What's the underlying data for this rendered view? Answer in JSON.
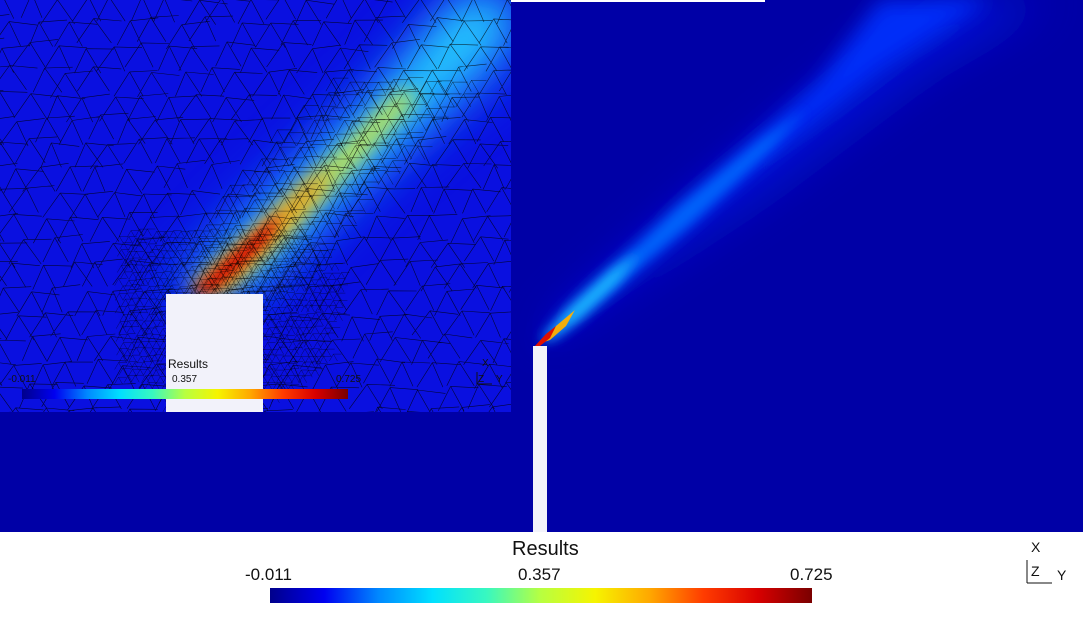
{
  "colormap": {
    "stops": [
      "#00008b",
      "#0000f0",
      "#0088ff",
      "#00e0ff",
      "#38f8c0",
      "#b8ff40",
      "#f6f400",
      "#ffa800",
      "#ff3c00",
      "#d80000",
      "#7a0000"
    ]
  },
  "inset_view": {
    "legend": {
      "title": "Results",
      "min": "-0.011",
      "mid": "0.357",
      "max": "0.725"
    },
    "axes": {
      "x": "X",
      "z": "Z",
      "y": "Y"
    }
  },
  "main_view": {
    "legend": {
      "title": "Results",
      "min": "-0.011",
      "mid": "0.357",
      "max": "0.725"
    },
    "axes": {
      "x": "X",
      "z": "Z",
      "y": "Y"
    }
  },
  "colors": {
    "field_background": "#0000a6",
    "obstacle": "#f2f2fa",
    "mesh_lines": "#000000"
  }
}
